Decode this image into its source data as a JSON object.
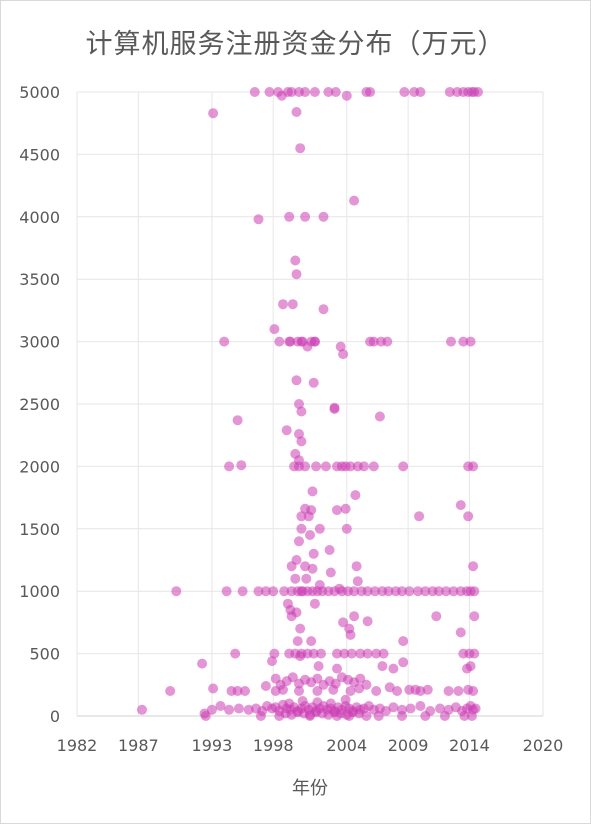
{
  "chart_data": {
    "type": "scatter",
    "title": "计算机服务注册资金分布（万元）",
    "xlabel": "年份",
    "ylabel": "",
    "xlim": [
      1982,
      2020
    ],
    "ylim": [
      0,
      5000
    ],
    "xticks": [
      1982,
      1987,
      1993,
      1998,
      2004,
      2009,
      2014,
      2020
    ],
    "yticks": [
      0,
      500,
      1000,
      1500,
      2000,
      2500,
      3000,
      3500,
      4000,
      4500,
      5000
    ],
    "grid": true,
    "marker_color": "#cc3eb4",
    "series": [
      {
        "x": [
          1996.5,
          1997.7,
          1998.4,
          1998.7,
          1999.2,
          1999.5,
          2000.1,
          2000.6,
          2001.4,
          2002.5,
          2003.1,
          2004.0,
          2005.6,
          2005.9,
          2008.7,
          2009.5,
          2010.0,
          2012.4,
          2013.0,
          2013.5,
          2013.9,
          2014.2,
          2014.4,
          2014.7,
          1993.1,
          1999.9,
          2000.2,
          2004.6,
          1996.8,
          1999.3,
          2000.6,
          2002.1,
          1999.8,
          1999.9,
          1998.8,
          1999.6,
          2002.1,
          1998.1,
          1999.4,
          2000.4,
          2001.4,
          1994.0,
          1998.5,
          1999.3,
          2000.0,
          2000.3,
          2000.8,
          2001.1,
          2001.4,
          2003.7,
          2005.9,
          2006.2,
          2006.8,
          2007.3,
          2012.5,
          2013.5,
          2014.1,
          2003.5,
          2003.0,
          2001.3,
          1999.9,
          2000.1,
          2003.0,
          2006.7,
          1995.1,
          1999.1,
          2000.1,
          2000.3,
          1999.8,
          2000.1,
          2000.3,
          1994.4,
          1995.4,
          1999.7,
          2000.1,
          2000.6,
          2001.5,
          2002.3,
          2003.2,
          2003.6,
          2003.9,
          2004.3,
          2004.9,
          2005.4,
          2006.2,
          2008.6,
          2013.9,
          2014.3,
          2003.2,
          2001.2,
          2000.6,
          2003.9,
          2000.3,
          2004.7,
          2013.3,
          2013.9,
          2009.9,
          2000.9,
          2001.1,
          2000.3,
          2001.8,
          2004.0,
          2001.0,
          2000.1,
          2001.3,
          1999.5,
          2000.6,
          1999.9,
          2002.6,
          2004.8,
          2001.2,
          1999.8,
          2000.7,
          2002.7,
          2000.3,
          2014.3,
          2001.8,
          1990.1,
          1994.2,
          1995.5,
          1996.8,
          1997.4,
          1998.0,
          1998.9,
          1999.5,
          2000.0,
          2000.4,
          2000.8,
          2001.2,
          2001.6,
          2002.0,
          2002.5,
          2003.0,
          2003.6,
          2004.1,
          2004.6,
          2005.2,
          2005.7,
          2006.3,
          2006.9,
          2007.4,
          2008.0,
          2008.5,
          2009.1,
          2009.8,
          2010.4,
          2011.0,
          2011.5,
          2012.1,
          2012.7,
          2013.3,
          2013.8,
          2014.1,
          2014.4,
          2004.9,
          2003.4,
          1999.2,
          1999.5,
          2001.4,
          1999.4,
          1999.9,
          2000.2,
          2004.6,
          2003.7,
          2005.7,
          2004.2,
          2011.3,
          2014.4,
          2000.0,
          2001.1,
          2008.6,
          2004.3,
          2013.3,
          1998.1,
          1999.3,
          1999.8,
          2000.3,
          2000.8,
          2001.3,
          2001.9,
          2003.2,
          2003.8,
          2004.4,
          2005.1,
          2005.7,
          2006.4,
          2007.0,
          2013.5,
          2014.0,
          2014.4,
          1992.2,
          1994.9,
          2000.2,
          1997.9,
          2001.7,
          2003.2,
          2006.9,
          2007.8,
          2008.6,
          2013.8,
          2014.1,
          1989.6,
          1993.1,
          1994.6,
          1995.1,
          1995.7,
          1997.4,
          1998.2,
          1998.8,
          2000.1,
          2001.6,
          2002.9,
          2004.3,
          2005.0,
          2006.4,
          2007.5,
          2008.1,
          2009.1,
          2010.0,
          2010.6,
          2012.3,
          2013.1,
          2013.9,
          2014.3,
          2009.6,
          1987.3,
          1992.4,
          1993.0,
          1993.7,
          1994.4,
          1995.2,
          1996.0,
          1996.6,
          1997.1,
          1997.5,
          1997.9,
          1998.2,
          1998.5,
          1998.8,
          1999.1,
          1999.4,
          1999.7,
          2000.0,
          2000.3,
          2000.6,
          2000.9,
          2001.2,
          2001.5,
          2001.8,
          2002.1,
          2002.4,
          2002.7,
          2003.0,
          2003.3,
          2003.6,
          2003.9,
          2004.2,
          2004.5,
          2004.8,
          2005.1,
          2005.4,
          2005.8,
          2006.2,
          2006.7,
          2007.2,
          2007.8,
          2008.5,
          2009.2,
          2010.0,
          2010.8,
          2011.6,
          2012.3,
          2012.9,
          2013.4,
          2013.8,
          2014.1,
          2014.3,
          2014.5,
          1999.0,
          1999.5,
          2000.0,
          2000.5,
          2001.0,
          2001.5,
          2002.0,
          2002.5,
          2003.0,
          2003.5,
          2004.0,
          2004.5,
          2005.0,
          1999.3,
          2000.4,
          2001.6,
          2002.7,
          2003.9,
          1992.5,
          1997.0,
          1998.5,
          2001.0,
          2003.2,
          2004.2,
          2005.6,
          2006.6,
          2008.5,
          2010.4,
          2012.0,
          2013.6,
          2014.2,
          1998.2,
          1998.6,
          1999.1,
          1999.6,
          2000.1,
          2000.6,
          2001.1,
          2001.6,
          2002.1,
          2002.6,
          2003.1,
          2003.6,
          2004.1,
          2004.6,
          2005.1,
          2005.6
        ],
        "y": [
          5000,
          5000,
          5000,
          4970,
          5000,
          5000,
          5000,
          5000,
          5000,
          5000,
          5000,
          4970,
          5000,
          5000,
          5000,
          5000,
          5000,
          5000,
          5000,
          5000,
          5000,
          5000,
          5000,
          5000,
          4830,
          4840,
          4550,
          4130,
          3980,
          4000,
          4000,
          4000,
          3650,
          3540,
          3300,
          3300,
          3260,
          3100,
          3000,
          3000,
          3000,
          3000,
          3000,
          3000,
          3000,
          3000,
          2960,
          3000,
          3000,
          2900,
          3000,
          3000,
          3000,
          3000,
          3000,
          3000,
          3000,
          2960,
          2470,
          2670,
          2690,
          2500,
          2460,
          2400,
          2370,
          2290,
          2260,
          2200,
          2100,
          2050,
          2440,
          2000,
          2010,
          2000,
          2000,
          2000,
          2000,
          2000,
          2000,
          2000,
          2000,
          2000,
          2000,
          2000,
          2000,
          2000,
          2000,
          2000,
          1650,
          1800,
          1660,
          1660,
          1600,
          1770,
          1690,
          1600,
          1600,
          1600,
          1650,
          1500,
          1500,
          1500,
          1450,
          1400,
          1300,
          1200,
          1200,
          1250,
          1330,
          1200,
          1180,
          1100,
          1100,
          1150,
          1000,
          1200,
          1050,
          1000,
          1000,
          1000,
          1000,
          1000,
          1000,
          1000,
          1000,
          1000,
          1000,
          1000,
          1000,
          1000,
          1000,
          1000,
          1000,
          1000,
          1000,
          1000,
          1000,
          1000,
          1000,
          1000,
          1000,
          1000,
          1000,
          1000,
          1000,
          1000,
          1000,
          1000,
          1000,
          1000,
          1000,
          1000,
          1000,
          1000,
          1080,
          1020,
          900,
          800,
          900,
          850,
          830,
          700,
          800,
          750,
          760,
          700,
          800,
          800,
          600,
          600,
          600,
          650,
          670,
          500,
          500,
          500,
          500,
          500,
          500,
          500,
          500,
          500,
          500,
          500,
          500,
          500,
          500,
          500,
          500,
          500,
          420,
          500,
          480,
          440,
          400,
          380,
          400,
          380,
          430,
          380,
          400,
          200,
          220,
          200,
          200,
          200,
          240,
          200,
          210,
          200,
          200,
          210,
          200,
          220,
          200,
          230,
          200,
          210,
          200,
          210,
          200,
          200,
          210,
          200,
          210,
          50,
          20,
          50,
          80,
          50,
          60,
          50,
          60,
          40,
          80,
          60,
          70,
          40,
          90,
          60,
          50,
          70,
          40,
          60,
          80,
          50,
          70,
          40,
          60,
          80,
          50,
          60,
          40,
          70,
          50,
          80,
          60,
          40,
          70,
          50,
          60,
          80,
          50,
          60,
          40,
          70,
          50,
          60,
          80,
          40,
          60,
          50,
          70,
          40,
          60,
          80,
          50,
          60,
          20,
          10,
          30,
          20,
          10,
          30,
          20,
          10,
          30,
          20,
          10,
          30,
          20,
          100,
          120,
          110,
          100,
          130,
          0,
          0,
          0,
          0,
          0,
          0,
          0,
          0,
          0,
          0,
          0,
          0,
          0,
          300,
          250,
          280,
          310,
          260,
          290,
          270,
          300,
          250,
          280,
          260,
          310,
          290,
          270,
          300,
          250
        ]
      }
    ]
  }
}
